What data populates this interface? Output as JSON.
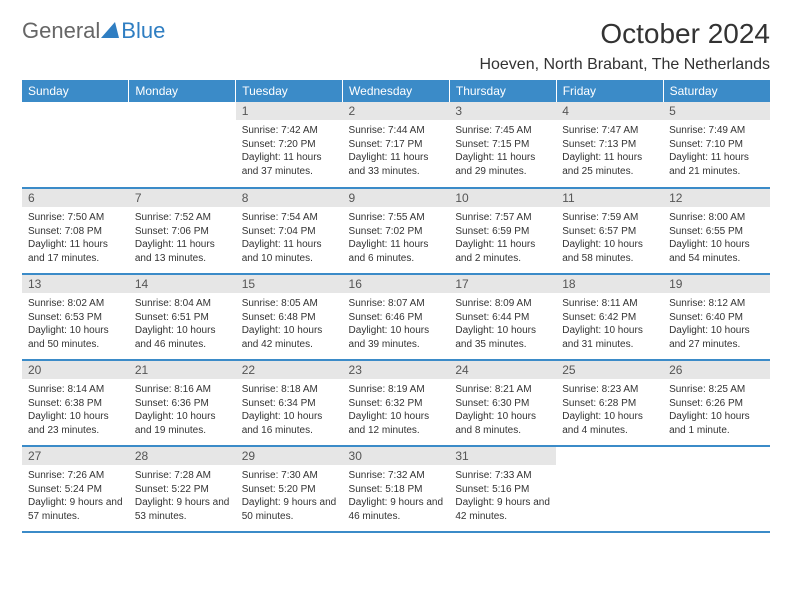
{
  "logo": {
    "text_general": "General",
    "text_blue": "Blue",
    "triangle_color": "#2f7ec2"
  },
  "title": "October 2024",
  "location": "Hoeven, North Brabant, The Netherlands",
  "colors": {
    "header_bg": "#3b8bc8",
    "header_text": "#ffffff",
    "daynum_bg": "#e6e6e6",
    "daynum_text": "#555555",
    "body_text": "#333333",
    "rule": "#3b8bc8",
    "page_bg": "#ffffff"
  },
  "day_headers": [
    "Sunday",
    "Monday",
    "Tuesday",
    "Wednesday",
    "Thursday",
    "Friday",
    "Saturday"
  ],
  "weeks": [
    [
      null,
      null,
      {
        "n": "1",
        "sr": "7:42 AM",
        "ss": "7:20 PM",
        "dl": "11 hours and 37 minutes."
      },
      {
        "n": "2",
        "sr": "7:44 AM",
        "ss": "7:17 PM",
        "dl": "11 hours and 33 minutes."
      },
      {
        "n": "3",
        "sr": "7:45 AM",
        "ss": "7:15 PM",
        "dl": "11 hours and 29 minutes."
      },
      {
        "n": "4",
        "sr": "7:47 AM",
        "ss": "7:13 PM",
        "dl": "11 hours and 25 minutes."
      },
      {
        "n": "5",
        "sr": "7:49 AM",
        "ss": "7:10 PM",
        "dl": "11 hours and 21 minutes."
      }
    ],
    [
      {
        "n": "6",
        "sr": "7:50 AM",
        "ss": "7:08 PM",
        "dl": "11 hours and 17 minutes."
      },
      {
        "n": "7",
        "sr": "7:52 AM",
        "ss": "7:06 PM",
        "dl": "11 hours and 13 minutes."
      },
      {
        "n": "8",
        "sr": "7:54 AM",
        "ss": "7:04 PM",
        "dl": "11 hours and 10 minutes."
      },
      {
        "n": "9",
        "sr": "7:55 AM",
        "ss": "7:02 PM",
        "dl": "11 hours and 6 minutes."
      },
      {
        "n": "10",
        "sr": "7:57 AM",
        "ss": "6:59 PM",
        "dl": "11 hours and 2 minutes."
      },
      {
        "n": "11",
        "sr": "7:59 AM",
        "ss": "6:57 PM",
        "dl": "10 hours and 58 minutes."
      },
      {
        "n": "12",
        "sr": "8:00 AM",
        "ss": "6:55 PM",
        "dl": "10 hours and 54 minutes."
      }
    ],
    [
      {
        "n": "13",
        "sr": "8:02 AM",
        "ss": "6:53 PM",
        "dl": "10 hours and 50 minutes."
      },
      {
        "n": "14",
        "sr": "8:04 AM",
        "ss": "6:51 PM",
        "dl": "10 hours and 46 minutes."
      },
      {
        "n": "15",
        "sr": "8:05 AM",
        "ss": "6:48 PM",
        "dl": "10 hours and 42 minutes."
      },
      {
        "n": "16",
        "sr": "8:07 AM",
        "ss": "6:46 PM",
        "dl": "10 hours and 39 minutes."
      },
      {
        "n": "17",
        "sr": "8:09 AM",
        "ss": "6:44 PM",
        "dl": "10 hours and 35 minutes."
      },
      {
        "n": "18",
        "sr": "8:11 AM",
        "ss": "6:42 PM",
        "dl": "10 hours and 31 minutes."
      },
      {
        "n": "19",
        "sr": "8:12 AM",
        "ss": "6:40 PM",
        "dl": "10 hours and 27 minutes."
      }
    ],
    [
      {
        "n": "20",
        "sr": "8:14 AM",
        "ss": "6:38 PM",
        "dl": "10 hours and 23 minutes."
      },
      {
        "n": "21",
        "sr": "8:16 AM",
        "ss": "6:36 PM",
        "dl": "10 hours and 19 minutes."
      },
      {
        "n": "22",
        "sr": "8:18 AM",
        "ss": "6:34 PM",
        "dl": "10 hours and 16 minutes."
      },
      {
        "n": "23",
        "sr": "8:19 AM",
        "ss": "6:32 PM",
        "dl": "10 hours and 12 minutes."
      },
      {
        "n": "24",
        "sr": "8:21 AM",
        "ss": "6:30 PM",
        "dl": "10 hours and 8 minutes."
      },
      {
        "n": "25",
        "sr": "8:23 AM",
        "ss": "6:28 PM",
        "dl": "10 hours and 4 minutes."
      },
      {
        "n": "26",
        "sr": "8:25 AM",
        "ss": "6:26 PM",
        "dl": "10 hours and 1 minute."
      }
    ],
    [
      {
        "n": "27",
        "sr": "7:26 AM",
        "ss": "5:24 PM",
        "dl": "9 hours and 57 minutes."
      },
      {
        "n": "28",
        "sr": "7:28 AM",
        "ss": "5:22 PM",
        "dl": "9 hours and 53 minutes."
      },
      {
        "n": "29",
        "sr": "7:30 AM",
        "ss": "5:20 PM",
        "dl": "9 hours and 50 minutes."
      },
      {
        "n": "30",
        "sr": "7:32 AM",
        "ss": "5:18 PM",
        "dl": "9 hours and 46 minutes."
      },
      {
        "n": "31",
        "sr": "7:33 AM",
        "ss": "5:16 PM",
        "dl": "9 hours and 42 minutes."
      },
      null,
      null
    ]
  ],
  "labels": {
    "sunrise": "Sunrise:",
    "sunset": "Sunset:",
    "daylight": "Daylight:"
  }
}
